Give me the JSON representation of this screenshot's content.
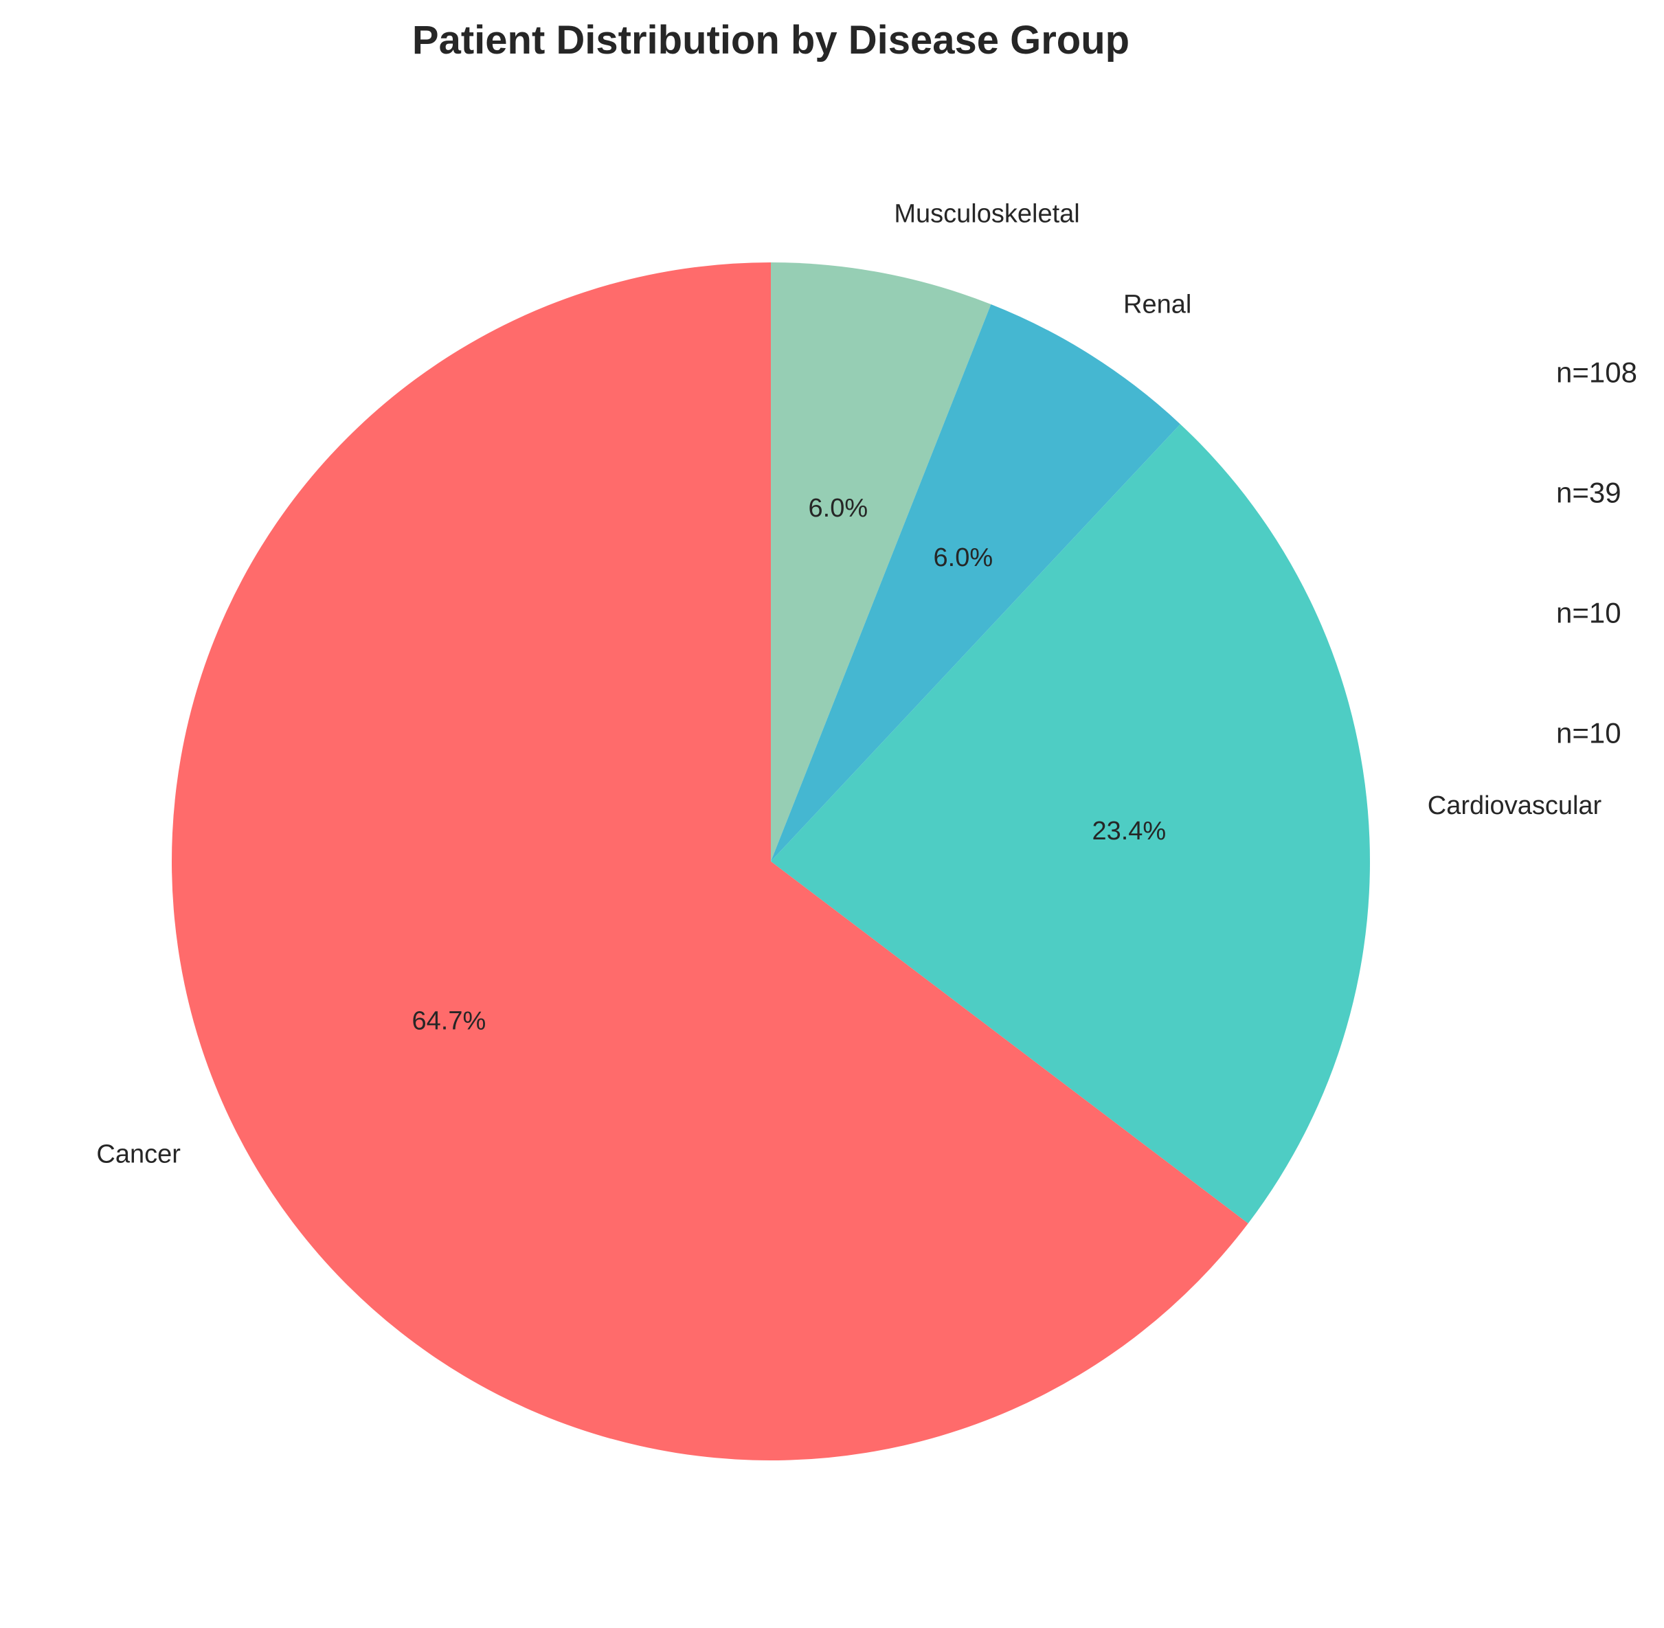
{
  "chart_data": {
    "type": "pie",
    "title": "Patient Distribution by Disease Group",
    "start_angle_deg": 90,
    "direction": "clockwise",
    "categories": [
      "Musculoskeletal",
      "Renal",
      "Cardiovascular",
      "Cancer"
    ],
    "values": [
      10,
      10,
      39,
      108
    ],
    "percent_labels": [
      "6.0%",
      "6.0%",
      "23.4%",
      "64.7%"
    ],
    "colors": [
      "#96CEB4",
      "#45B7D1",
      "#4ECDC4",
      "#FF6B6B"
    ],
    "count_annotations": [
      "n=108",
      "n=39",
      "n=10",
      "n=10"
    ]
  }
}
